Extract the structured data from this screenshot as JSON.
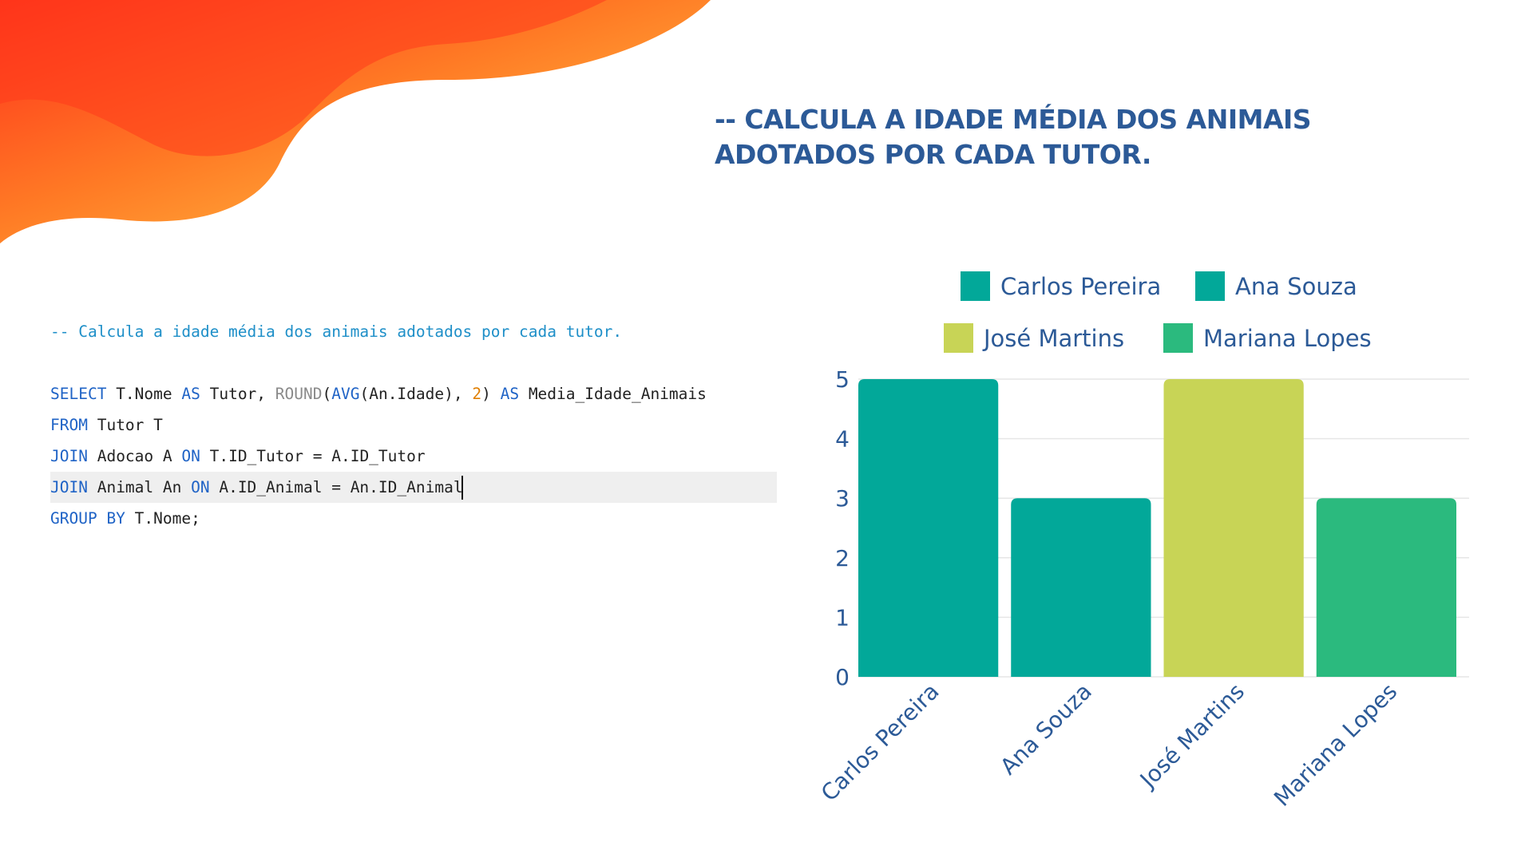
{
  "slide": {
    "title_line1": "-- CALCULA A IDADE MÉDIA DOS ANIMAIS",
    "title_line2": "ADOTADOS POR CADA TUTOR."
  },
  "code": {
    "comment": "-- Calcula a idade média dos animais adotados por cada tutor.",
    "lines": [
      [
        [
          "kw",
          "SELECT"
        ],
        [
          "plain",
          " T.Nome "
        ],
        [
          "kw",
          "AS"
        ],
        [
          "plain",
          " Tutor, "
        ],
        [
          "fn",
          "ROUND"
        ],
        [
          "plain",
          "("
        ],
        [
          "kw",
          "AVG"
        ],
        [
          "plain",
          "(An.Idade), "
        ],
        [
          "num",
          "2"
        ],
        [
          "plain",
          ") "
        ],
        [
          "kw",
          "AS"
        ],
        [
          "plain",
          " Media_Idade_Animais"
        ]
      ],
      [
        [
          "kw",
          "FROM"
        ],
        [
          "plain",
          " Tutor T"
        ]
      ],
      [
        [
          "kw",
          "JOIN"
        ],
        [
          "plain",
          " Adocao A "
        ],
        [
          "kw",
          "ON"
        ],
        [
          "plain",
          " T.ID_Tutor = A.ID_Tutor"
        ]
      ],
      [
        [
          "kw",
          "JOIN"
        ],
        [
          "plain",
          " Animal An "
        ],
        [
          "kw",
          "ON"
        ],
        [
          "plain",
          " A.ID_Animal = An.ID_Animal"
        ]
      ],
      [
        [
          "kw",
          "GROUP BY"
        ],
        [
          "plain",
          " T.Nome;"
        ]
      ]
    ]
  },
  "colors": {
    "title": "#2c5a97",
    "teal": "#02a899",
    "lime": "#c8d456",
    "green": "#2bba7e",
    "blob_red": "#ff3b1f",
    "blob_orange": "#ff8f2a",
    "blob_yellow": "#ffd54a"
  },
  "chart_data": {
    "type": "bar",
    "categories": [
      "Carlos Pereira",
      "Ana Souza",
      "José Martins",
      "Mariana Lopes"
    ],
    "values": [
      5,
      3,
      5,
      3
    ],
    "bar_colors": [
      "#02a899",
      "#02a899",
      "#c8d456",
      "#2bba7e"
    ],
    "legend": [
      {
        "label": "Carlos Pereira",
        "color": "#02a899"
      },
      {
        "label": "Ana Souza",
        "color": "#02a899"
      },
      {
        "label": "José Martins",
        "color": "#c8d456"
      },
      {
        "label": "Mariana Lopes",
        "color": "#2bba7e"
      }
    ],
    "yticks": [
      0,
      1,
      2,
      3,
      4,
      5
    ],
    "ylim": [
      0,
      5
    ],
    "grid": true,
    "legend_position": "top"
  }
}
